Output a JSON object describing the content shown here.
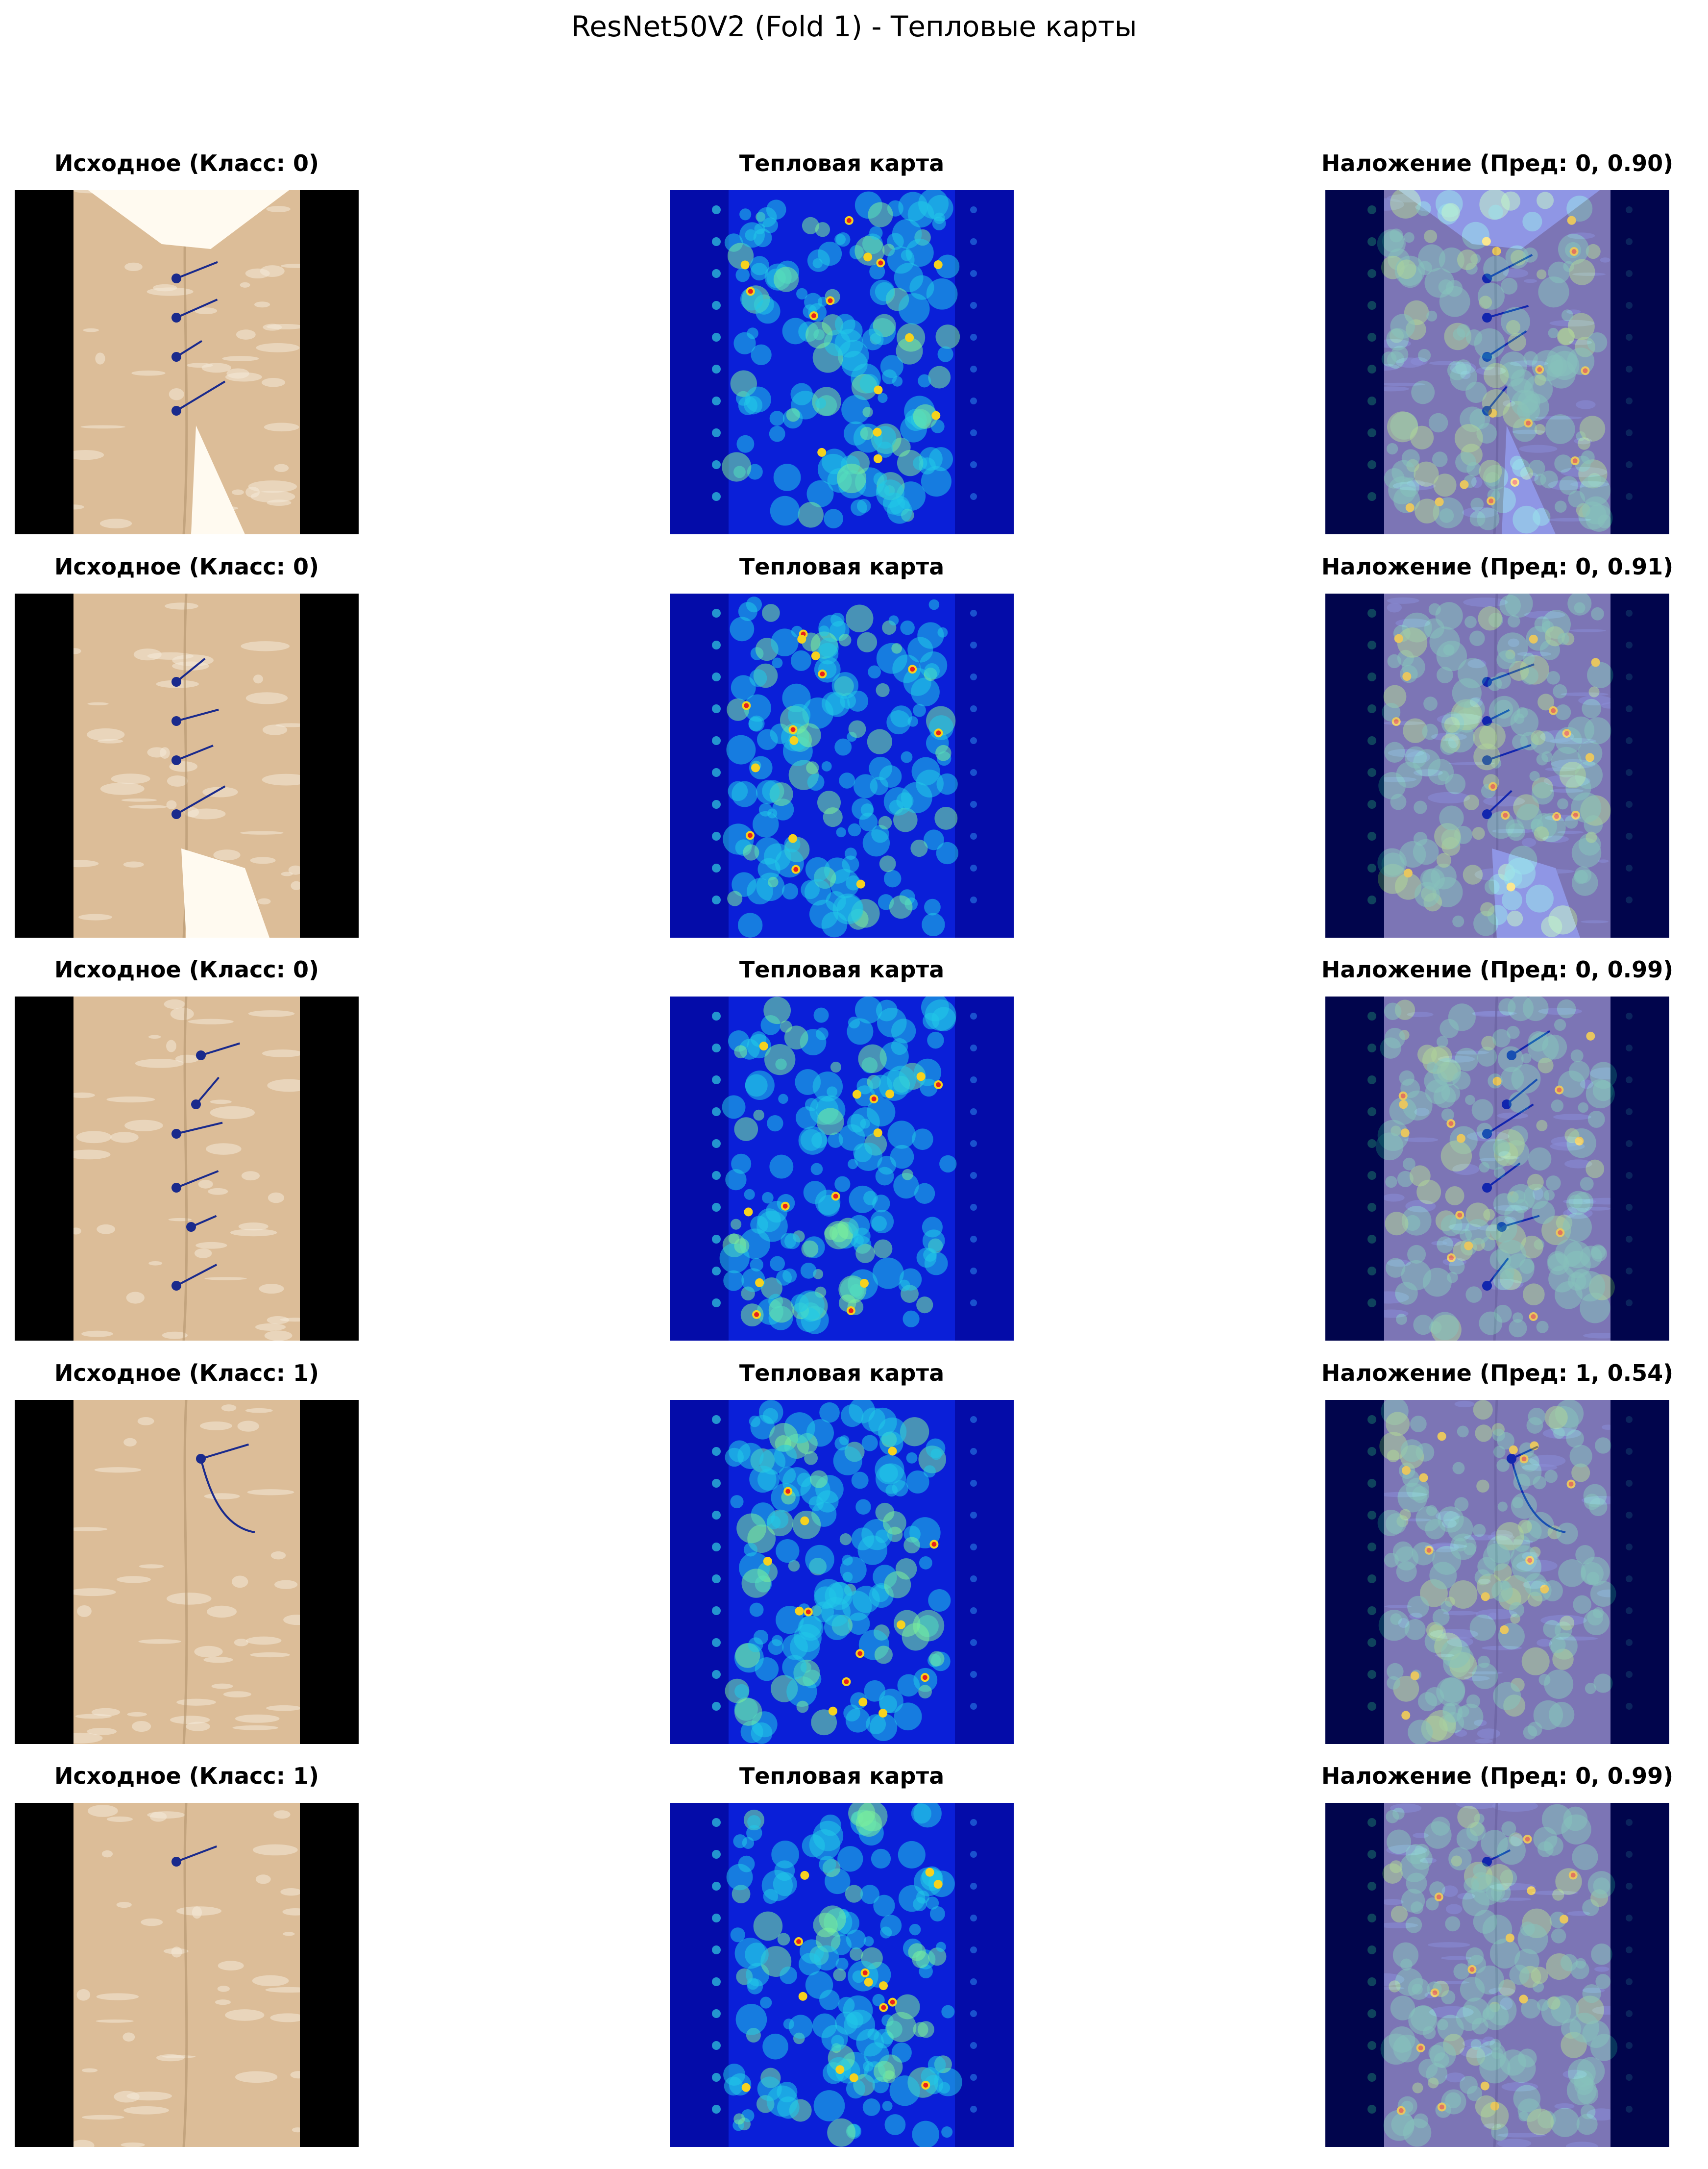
{
  "figure": {
    "title": "ResNet50V2 (Fold 1) - Тепловые карты"
  },
  "rows": [
    {
      "original_title": "Исходное (Класс: 0)",
      "heatmap_title": "Тепловая карта",
      "overlay_title": "Наложение (Пред: 0, 0.90)"
    },
    {
      "original_title": "Исходное (Класс: 0)",
      "heatmap_title": "Тепловая карта",
      "overlay_title": "Наложение (Пред: 0, 0.91)"
    },
    {
      "original_title": "Исходное (Класс: 0)",
      "heatmap_title": "Тепловая карта",
      "overlay_title": "Наложение (Пред: 0, 0.99)"
    },
    {
      "original_title": "Исходное (Класс: 1)",
      "heatmap_title": "Тепловая карта",
      "overlay_title": "Наложение (Пред: 1, 0.54)"
    },
    {
      "original_title": "Исходное (Класс: 1)",
      "heatmap_title": "Тепловая карта",
      "overlay_title": "Наложение (Пред: 0, 0.99)"
    }
  ],
  "colors": {
    "tissue": "#dcbd98",
    "heatmap_bg": "#0a1fd8",
    "black_bar": "#000000"
  }
}
